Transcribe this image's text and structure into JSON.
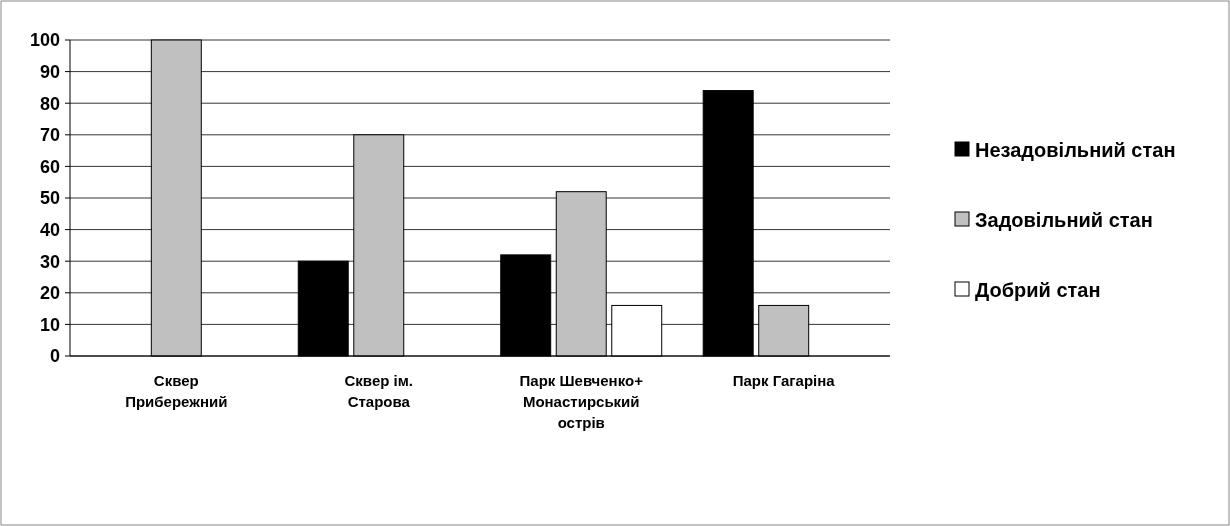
{
  "chart_data": {
    "type": "bar",
    "categories": [
      "Сквер Прибережний",
      "Сквер ім. Старова",
      "Парк Шевченко+ Монастирський острів",
      "Парк Гагаріна"
    ],
    "series": [
      {
        "name": "Незадовільний стан",
        "color": "#000000",
        "values": [
          0,
          30,
          32,
          84
        ]
      },
      {
        "name": "Задовільний стан",
        "color": "#c0c0c0",
        "values": [
          100,
          70,
          52,
          16
        ]
      },
      {
        "name": "Добрий стан",
        "color": "#ffffff",
        "values": [
          0,
          0,
          16,
          0
        ]
      }
    ],
    "ylim": [
      0,
      100
    ],
    "yticks": [
      0,
      10,
      20,
      30,
      40,
      50,
      60,
      70,
      80,
      90,
      100
    ],
    "grid": "y",
    "legend": "right"
  }
}
